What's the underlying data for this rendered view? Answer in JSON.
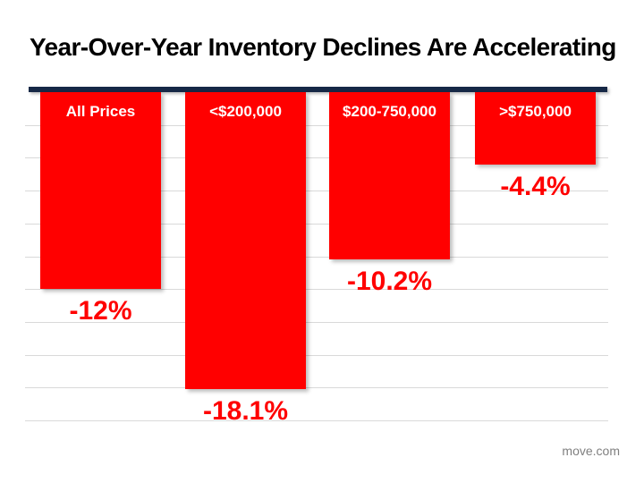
{
  "title": "Year-Over-Year Inventory Declines Are Accelerating",
  "attribution": "move.com",
  "colors": {
    "bar": "#ff0000",
    "baseline": "#162846",
    "gridline": "#d9d9d9",
    "category_label": "#ffffff",
    "value_label": "#ff0000",
    "title": "#000000",
    "attribution": "#7f7f7f"
  },
  "chart_data": {
    "type": "bar",
    "orientation": "vertical-negative",
    "title": "Year-Over-Year Inventory Declines Are Accelerating",
    "categories": [
      "All Prices",
      "<$200,000",
      "$200-750,000",
      ">$750,000"
    ],
    "values": [
      -12,
      -18.1,
      -10.2,
      -4.4
    ],
    "value_labels": [
      "-12%",
      "-18.1%",
      "-10.2%",
      "-4.4%"
    ],
    "xlabel": "",
    "ylabel": "",
    "ylim": [
      -20,
      0
    ],
    "gridline_step_percent": 2,
    "grid": true,
    "legend": false,
    "category_label_position": "inside-top",
    "value_label_position": "below-bar"
  }
}
